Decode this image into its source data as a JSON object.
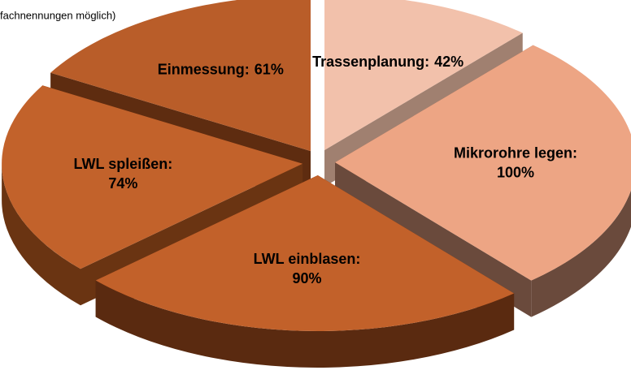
{
  "chart_data": {
    "type": "pie",
    "subtitle": "fachnennungen möglich)",
    "categories": [
      "Trassenplanung:",
      "Mikrorohre legen:",
      "LWL einblasen:",
      "LWL spleißen:",
      "Einmessung:"
    ],
    "values": [
      42,
      100,
      90,
      74,
      61
    ],
    "value_labels": [
      "42%",
      "100%",
      "90%",
      "74%",
      "61%"
    ],
    "colors": [
      "#f2c1ab",
      "#eda584",
      "#c2612a",
      "#c2622b",
      "#b95d29"
    ],
    "side_colors": [
      "#a08070",
      "#6a4a3c",
      "#5a2a10",
      "#6a3412",
      "#5e2c10"
    ]
  }
}
